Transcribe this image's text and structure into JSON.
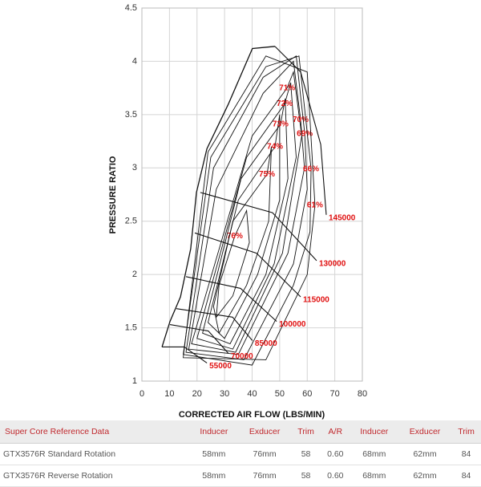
{
  "chart_data": {
    "type": "compressor-map",
    "x_label": "CORRECTED AIR FLOW (LBS/MIN)",
    "y_label": "PRESSURE RATIO",
    "xlim": [
      0,
      80
    ],
    "xticks": [
      0,
      10,
      20,
      30,
      40,
      50,
      60,
      70,
      80
    ],
    "ylim": [
      1,
      4.5
    ],
    "yticks": [
      1,
      1.5,
      2,
      2.5,
      3,
      3.5,
      4,
      4.5
    ],
    "grid": true,
    "line_color": "#111111",
    "label_color": "#e01010",
    "surge_line": {
      "x": [
        7.3,
        10.2,
        14.0,
        17.7,
        19.8,
        23.6,
        31.4,
        40.1,
        48.3
      ],
      "y": [
        1.32,
        1.56,
        1.79,
        2.24,
        2.77,
        3.18,
        3.6,
        4.12,
        4.14
      ]
    },
    "series": [
      {
        "name": "55000",
        "x": [
          7.3,
          15.4,
          23.6
        ],
        "y": [
          1.32,
          1.32,
          1.17
        ]
      },
      {
        "name": "70000",
        "x": [
          10.2,
          24.1,
          31.4
        ],
        "y": [
          1.53,
          1.47,
          1.26
        ]
      },
      {
        "name": "85000",
        "x": [
          12.5,
          32.9,
          40.1
        ],
        "y": [
          1.68,
          1.6,
          1.38
        ]
      },
      {
        "name": "100000",
        "x": [
          16.0,
          35.8,
          48.9
        ],
        "y": [
          1.98,
          1.87,
          1.56
        ]
      },
      {
        "name": "115000",
        "x": [
          19.2,
          41.6,
          57.6
        ],
        "y": [
          2.39,
          2.2,
          1.79
        ]
      },
      {
        "name": "130000",
        "x": [
          21.2,
          47.4,
          63.4
        ],
        "y": [
          2.77,
          2.58,
          2.13
        ]
      },
      {
        "name": "145000",
        "x": [
          48.3,
          57.6,
          64.9,
          66.9
        ],
        "y": [
          4.14,
          3.9,
          3.22,
          2.56
        ]
      }
    ],
    "efficiency_islands": [
      {
        "value": 76,
        "label": "76%",
        "x": [
          33.7,
          38,
          39,
          33,
          27,
          28
        ],
        "y": [
          2.36,
          2.6,
          2.3,
          1.8,
          1.6,
          1.9
        ]
      },
      {
        "value": 75,
        "label": "75%",
        "x": [
          45.4,
          47,
          46,
          38,
          28,
          26,
          33
        ],
        "y": [
          2.94,
          3.2,
          2.5,
          1.9,
          1.45,
          1.7,
          2.5
        ]
      },
      {
        "value": 74,
        "label": "74%",
        "x": [
          48.3,
          50,
          50,
          42,
          30,
          24,
          35
        ],
        "y": [
          3.2,
          3.5,
          2.7,
          2.0,
          1.4,
          1.55,
          2.7
        ]
      },
      {
        "value": 73,
        "label": "73%",
        "x": [
          50.3,
          52,
          53,
          45,
          32,
          22,
          36
        ],
        "y": [
          3.41,
          3.65,
          2.9,
          2.0,
          1.35,
          1.45,
          2.9
        ]
      },
      {
        "value": 72,
        "label": "72%",
        "x": [
          51.8,
          54,
          56,
          48,
          33,
          20,
          38
        ],
        "y": [
          3.6,
          3.8,
          3.1,
          2.1,
          1.3,
          1.4,
          3.1
        ]
      },
      {
        "value": 71,
        "label": "71%",
        "x": [
          52.7,
          55,
          58,
          51,
          34,
          18,
          40
        ],
        "y": [
          3.75,
          3.9,
          3.3,
          2.2,
          1.27,
          1.35,
          3.3
        ]
      },
      {
        "value": 70,
        "label": "70%",
        "x": [
          57.6,
          59,
          53,
          35,
          17,
          27,
          44,
          55
        ],
        "y": [
          3.45,
          3.0,
          2.2,
          1.25,
          1.3,
          2.8,
          3.7,
          4.0
        ]
      },
      {
        "value": 69,
        "label": "69%",
        "x": [
          59.1,
          60,
          55,
          37,
          16,
          26,
          44,
          56
        ],
        "y": [
          3.32,
          2.8,
          2.1,
          1.2,
          1.27,
          3.0,
          3.85,
          4.05
        ]
      },
      {
        "value": 66,
        "label": "66%",
        "x": [
          61.4,
          61,
          55,
          40,
          15,
          25,
          45,
          57
        ],
        "y": [
          2.99,
          2.4,
          1.9,
          1.15,
          1.25,
          3.1,
          3.95,
          4.05
        ]
      },
      {
        "value": 61,
        "label": "61%",
        "x": [
          62.8,
          60,
          45,
          15,
          24,
          45,
          60
        ],
        "y": [
          2.65,
          2.0,
          1.2,
          1.22,
          3.15,
          4.05,
          3.9
        ]
      }
    ]
  },
  "table": {
    "header": [
      "Super Core Reference Data",
      "Inducer",
      "Exducer",
      "Trim",
      "A/R",
      "Inducer",
      "Exducer",
      "Trim"
    ],
    "rows": [
      [
        "GTX3576R Standard Rotation",
        "58mm",
        "76mm",
        "58",
        "0.60",
        "68mm",
        "62mm",
        "84"
      ],
      [
        "GTX3576R Reverse Rotation",
        "58mm",
        "76mm",
        "58",
        "0.60",
        "68mm",
        "62mm",
        "84"
      ]
    ]
  }
}
